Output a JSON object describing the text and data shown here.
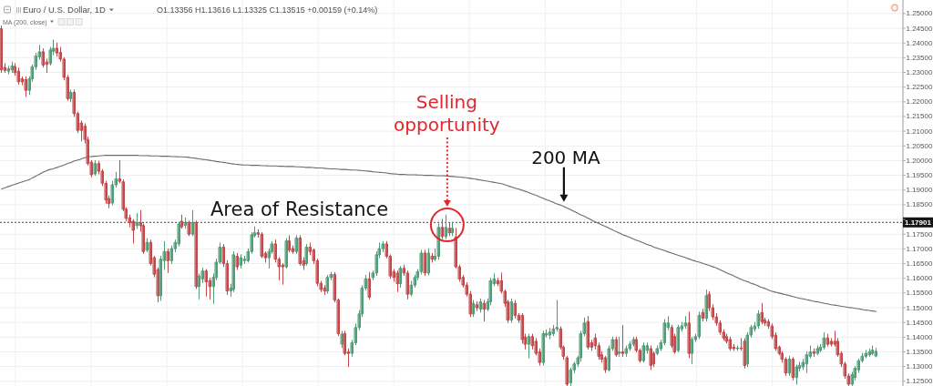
{
  "chart_data": {
    "type": "candlestick",
    "title": "Euro / U.S. Dollar, 1D",
    "subtitle": "O1.13356 H1.13616 L1.13325 C1.13515 +0.00159 (+0.14%)",
    "categories": [
      null,
      null,
      null,
      null,
      null,
      null,
      null,
      null,
      null,
      null,
      null,
      null,
      null,
      null,
      null,
      null,
      null,
      null,
      null,
      null,
      null,
      null,
      null,
      null,
      null,
      null,
      null,
      null,
      null,
      null,
      null,
      null,
      null,
      null,
      null,
      null,
      null,
      null,
      null,
      null,
      null,
      null,
      null,
      null,
      null,
      null,
      null,
      null,
      null,
      null,
      null,
      null,
      null,
      null,
      null,
      null,
      null,
      null,
      null,
      null,
      null,
      null,
      null,
      null,
      null,
      null,
      null,
      null,
      null,
      null,
      null,
      null,
      null,
      null,
      null,
      null,
      null,
      null,
      null,
      null,
      null,
      null,
      null,
      null,
      null,
      null,
      null,
      null,
      null,
      null,
      null,
      null,
      null,
      null,
      null,
      null,
      null,
      null,
      null,
      null,
      null,
      null,
      null,
      null,
      null,
      null,
      null,
      null,
      null,
      null,
      null,
      null,
      null,
      null,
      null,
      null,
      null,
      null,
      null,
      null,
      null,
      null,
      null,
      null,
      null,
      null,
      null,
      null,
      null,
      null,
      null,
      null,
      null,
      null,
      null,
      null,
      null,
      null,
      null,
      null,
      null,
      null,
      null,
      null,
      null,
      null,
      null,
      null,
      null,
      null,
      null,
      null,
      null,
      null,
      null,
      null,
      null,
      null,
      null,
      null,
      null,
      null,
      null,
      null,
      null,
      null,
      null,
      null,
      null,
      null,
      null,
      null,
      null,
      null,
      null,
      null,
      null,
      null,
      null,
      null,
      null,
      null,
      null,
      null,
      null,
      null,
      null,
      null,
      null,
      null,
      null,
      null,
      null,
      null,
      null,
      null,
      null,
      null,
      null,
      null,
      null,
      null,
      null,
      null,
      null,
      null,
      null,
      null,
      null,
      null,
      null,
      null,
      null,
      null,
      null,
      null,
      null,
      null,
      null,
      null,
      null,
      null,
      null,
      null,
      null,
      null,
      null,
      null,
      null,
      null,
      null,
      null,
      null,
      null,
      null,
      null,
      null,
      null,
      null,
      null,
      null,
      null,
      null,
      null,
      null,
      null,
      null,
      null,
      null,
      null,
      null,
      null,
      null
    ],
    "ohlc": [
      [
        1.2448,
        1.2458,
        1.23,
        1.2309
      ],
      [
        1.2317,
        1.233,
        1.23,
        1.2307
      ],
      [
        1.2304,
        1.232,
        1.2295,
        1.2312
      ],
      [
        1.2309,
        1.2335,
        1.23,
        1.2322
      ],
      [
        1.232,
        1.233,
        1.229,
        1.2299
      ],
      [
        1.2304,
        1.2315,
        1.226,
        1.2268
      ],
      [
        1.2278,
        1.2285,
        1.2258,
        1.2268
      ],
      [
        1.2276,
        1.2285,
        1.2218,
        1.2239
      ],
      [
        1.2239,
        1.2285,
        1.2225,
        1.2278
      ],
      [
        1.2278,
        1.2325,
        1.227,
        1.2319
      ],
      [
        1.2319,
        1.2365,
        1.231,
        1.2356
      ],
      [
        1.2353,
        1.2392,
        1.2345,
        1.237
      ],
      [
        1.237,
        1.238,
        1.2318,
        1.2325
      ],
      [
        1.2335,
        1.2345,
        1.23,
        1.2327
      ],
      [
        1.233,
        1.2385,
        1.2325,
        1.2376
      ],
      [
        1.2372,
        1.241,
        1.236,
        1.2382
      ],
      [
        1.2382,
        1.24,
        1.2355,
        1.2366
      ],
      [
        1.2368,
        1.2385,
        1.2338,
        1.2345
      ],
      [
        1.2345,
        1.235,
        1.2275,
        1.2283
      ],
      [
        1.2283,
        1.229,
        1.2205,
        1.2211
      ],
      [
        1.2211,
        1.224,
        1.22,
        1.2232
      ],
      [
        1.2232,
        1.224,
        1.215,
        1.216
      ],
      [
        1.216,
        1.2165,
        1.2095,
        1.2103
      ],
      [
        1.2128,
        1.2135,
        1.2067,
        1.2103
      ],
      [
        1.2117,
        1.2125,
        1.206,
        1.2072
      ],
      [
        1.2072,
        1.208,
        1.1985,
        1.199
      ],
      [
        1.1995,
        1.2,
        1.1945,
        1.1952
      ],
      [
        1.1955,
        1.2,
        1.195,
        1.199
      ],
      [
        1.199,
        1.1998,
        1.1955,
        1.1964
      ],
      [
        1.1964,
        1.197,
        1.1915,
        1.1923
      ],
      [
        1.1923,
        1.193,
        1.1855,
        1.1866
      ],
      [
        1.1871,
        1.188,
        1.184,
        1.1854
      ],
      [
        1.1856,
        1.193,
        1.185,
        1.1918
      ],
      [
        1.1918,
        1.196,
        1.191,
        1.1938
      ],
      [
        1.1938,
        1.2,
        1.1925,
        1.193
      ],
      [
        1.1928,
        1.1935,
        1.183,
        1.1835
      ],
      [
        1.1835,
        1.184,
        1.1795,
        1.1804
      ],
      [
        1.1806,
        1.1815,
        1.1775,
        1.1789
      ],
      [
        1.1794,
        1.18,
        1.172,
        1.1763
      ],
      [
        1.1779,
        1.182,
        1.177,
        1.1789
      ],
      [
        1.1789,
        1.183,
        1.176,
        1.1779
      ],
      [
        1.1779,
        1.1785,
        1.1685,
        1.1691
      ],
      [
        1.1696,
        1.1735,
        1.169,
        1.1722
      ],
      [
        1.1722,
        1.173,
        1.1645,
        1.165
      ],
      [
        1.167,
        1.1675,
        1.1605,
        1.1614
      ],
      [
        1.1629,
        1.1635,
        1.152,
        1.1541
      ],
      [
        1.1541,
        1.1675,
        1.1525,
        1.1665
      ],
      [
        1.166,
        1.1725,
        1.163,
        1.1691
      ],
      [
        1.1691,
        1.17,
        1.162,
        1.166
      ],
      [
        1.166,
        1.171,
        1.165,
        1.1701
      ],
      [
        1.1701,
        1.173,
        1.169,
        1.1722
      ],
      [
        1.1717,
        1.179,
        1.171,
        1.1784
      ],
      [
        1.1794,
        1.1815,
        1.177,
        1.1775
      ],
      [
        1.178,
        1.1805,
        1.177,
        1.179
      ],
      [
        1.1789,
        1.1795,
        1.1745,
        1.175
      ],
      [
        1.175,
        1.183,
        1.1745,
        1.1789
      ],
      [
        1.1789,
        1.1795,
        1.1565,
        1.1572
      ],
      [
        1.1572,
        1.1615,
        1.153,
        1.1608
      ],
      [
        1.1598,
        1.1635,
        1.1585,
        1.1625
      ],
      [
        1.1625,
        1.163,
        1.154,
        1.1588
      ],
      [
        1.1592,
        1.16,
        1.153,
        1.1572
      ],
      [
        1.1572,
        1.1615,
        1.1515,
        1.1603
      ],
      [
        1.1603,
        1.1665,
        1.1595,
        1.1655
      ],
      [
        1.1655,
        1.172,
        1.165,
        1.1706
      ],
      [
        1.1706,
        1.1715,
        1.164,
        1.165
      ],
      [
        1.165,
        1.166,
        1.1545,
        1.1557
      ],
      [
        1.1557,
        1.158,
        1.154,
        1.1567
      ],
      [
        1.1562,
        1.169,
        1.1555,
        1.168
      ],
      [
        1.1675,
        1.1685,
        1.163,
        1.1639
      ],
      [
        1.1645,
        1.168,
        1.1635,
        1.167
      ],
      [
        1.166,
        1.1675,
        1.165,
        1.1665
      ],
      [
        1.166,
        1.17,
        1.1655,
        1.1691
      ],
      [
        1.1691,
        1.1755,
        1.1685,
        1.1748
      ],
      [
        1.1745,
        1.1775,
        1.174,
        1.1755
      ],
      [
        1.1755,
        1.1765,
        1.174,
        1.175
      ],
      [
        1.175,
        1.1755,
        1.167,
        1.1675
      ],
      [
        1.1685,
        1.169,
        1.1655,
        1.167
      ],
      [
        1.167,
        1.17,
        1.1635,
        1.1691
      ],
      [
        1.1691,
        1.1725,
        1.1685,
        1.1717
      ],
      [
        1.1717,
        1.173,
        1.1655,
        1.1665
      ],
      [
        1.1665,
        1.167,
        1.1595,
        1.1639
      ],
      [
        1.1645,
        1.165,
        1.158,
        1.1639
      ],
      [
        1.1639,
        1.1735,
        1.1635,
        1.1727
      ],
      [
        1.1727,
        1.1745,
        1.169,
        1.1696
      ],
      [
        1.1701,
        1.171,
        1.1685,
        1.1691
      ],
      [
        1.1691,
        1.1745,
        1.1685,
        1.1737
      ],
      [
        1.1737,
        1.1745,
        1.1645,
        1.165
      ],
      [
        1.166,
        1.167,
        1.163,
        1.1645
      ],
      [
        1.165,
        1.1715,
        1.1645,
        1.1706
      ],
      [
        1.1706,
        1.172,
        1.168,
        1.1691
      ],
      [
        1.1696,
        1.17,
        1.165,
        1.166
      ],
      [
        1.166,
        1.1665,
        1.1575,
        1.1583
      ],
      [
        1.1583,
        1.159,
        1.1555,
        1.1562
      ],
      [
        1.1567,
        1.1575,
        1.1545,
        1.1557
      ],
      [
        1.1557,
        1.161,
        1.155,
        1.1603
      ],
      [
        1.1603,
        1.162,
        1.1595,
        1.1613
      ],
      [
        1.1613,
        1.162,
        1.152,
        1.1526
      ],
      [
        1.1526,
        1.153,
        1.1405,
        1.1412
      ],
      [
        1.1376,
        1.142,
        1.1365,
        1.141
      ],
      [
        1.1412,
        1.142,
        1.134,
        1.1345
      ],
      [
        1.135,
        1.136,
        1.13,
        1.1345
      ],
      [
        1.1345,
        1.139,
        1.1335,
        1.1381
      ],
      [
        1.1381,
        1.1445,
        1.1375,
        1.1433
      ],
      [
        1.1433,
        1.149,
        1.1425,
        1.1479
      ],
      [
        1.1479,
        1.1575,
        1.147,
        1.1567
      ],
      [
        1.1567,
        1.161,
        1.156,
        1.1598
      ],
      [
        1.1598,
        1.162,
        1.153,
        1.1536
      ],
      [
        1.1603,
        1.1625,
        1.1595,
        1.1618
      ],
      [
        1.1618,
        1.169,
        1.161,
        1.168
      ],
      [
        1.168,
        1.172,
        1.167,
        1.1701
      ],
      [
        1.1701,
        1.1725,
        1.169,
        1.1717
      ],
      [
        1.1717,
        1.1725,
        1.167,
        1.1675
      ],
      [
        1.1675,
        1.168,
        1.16,
        1.1608
      ],
      [
        1.1623,
        1.163,
        1.159,
        1.1603
      ],
      [
        1.1618,
        1.1625,
        1.1555,
        1.1582
      ],
      [
        1.1582,
        1.164,
        1.157,
        1.1634
      ],
      [
        1.1634,
        1.1645,
        1.161,
        1.1618
      ],
      [
        1.1618,
        1.1625,
        1.153,
        1.1546
      ],
      [
        1.1546,
        1.159,
        1.154,
        1.1577
      ],
      [
        1.1577,
        1.161,
        1.157,
        1.1603
      ],
      [
        1.1603,
        1.163,
        1.1595,
        1.1623
      ],
      [
        1.1623,
        1.1695,
        1.1615,
        1.1686
      ],
      [
        1.1686,
        1.1695,
        1.161,
        1.1618
      ],
      [
        1.1618,
        1.17,
        1.1612,
        1.1686
      ],
      [
        1.1675,
        1.1685,
        1.1655,
        1.1665
      ],
      [
        1.1665,
        1.17,
        1.166,
        1.1675
      ],
      [
        1.1675,
        1.1785,
        1.1665,
        1.1773
      ],
      [
        1.1773,
        1.18,
        1.1735,
        1.1742
      ],
      [
        1.1742,
        1.1815,
        1.1735,
        1.1773
      ],
      [
        1.177,
        1.179,
        1.1745,
        1.1755
      ],
      [
        1.1755,
        1.179,
        1.1745,
        1.177
      ],
      [
        1.174,
        1.177,
        1.1635,
        1.1639
      ],
      [
        1.1639,
        1.1645,
        1.159,
        1.1598
      ],
      [
        1.1603,
        1.161,
        1.157,
        1.1577
      ],
      [
        1.1577,
        1.1585,
        1.154,
        1.1546
      ],
      [
        1.1546,
        1.1555,
        1.147,
        1.1479
      ],
      [
        1.1479,
        1.1525,
        1.147,
        1.1515
      ],
      [
        1.151,
        1.152,
        1.149,
        1.15
      ],
      [
        1.1495,
        1.153,
        1.1485,
        1.152
      ],
      [
        1.1515,
        1.1525,
        1.1455,
        1.1495
      ],
      [
        1.1495,
        1.153,
        1.149,
        1.152
      ],
      [
        1.152,
        1.16,
        1.151,
        1.1592
      ],
      [
        1.1582,
        1.1615,
        1.1575,
        1.1598
      ],
      [
        1.1592,
        1.16,
        1.1575,
        1.1582
      ],
      [
        1.1592,
        1.1618,
        1.155,
        1.1556
      ],
      [
        1.1556,
        1.156,
        1.1505,
        1.1515
      ],
      [
        1.152,
        1.1525,
        1.145,
        1.1458
      ],
      [
        1.1458,
        1.153,
        1.145,
        1.152
      ],
      [
        1.1515,
        1.1525,
        1.1465,
        1.1474
      ],
      [
        1.1474,
        1.148,
        1.145,
        1.1458
      ],
      [
        1.1474,
        1.148,
        1.138,
        1.1392
      ],
      [
        1.14,
        1.141,
        1.136,
        1.1376
      ],
      [
        1.1376,
        1.141,
        1.133,
        1.1402
      ],
      [
        1.1402,
        1.141,
        1.136,
        1.1371
      ],
      [
        1.1386,
        1.1395,
        1.134,
        1.1345
      ],
      [
        1.135,
        1.136,
        1.1305,
        1.1314
      ],
      [
        1.1314,
        1.142,
        1.1305,
        1.1412
      ],
      [
        1.1407,
        1.1425,
        1.14,
        1.1412
      ],
      [
        1.1407,
        1.143,
        1.1395,
        1.1417
      ],
      [
        1.1412,
        1.144,
        1.1405,
        1.1428
      ],
      [
        1.1428,
        1.1525,
        1.142,
        1.1433
      ],
      [
        1.1428,
        1.1435,
        1.136,
        1.1366
      ],
      [
        1.1366,
        1.137,
        1.1325,
        1.1335
      ],
      [
        1.133,
        1.1335,
        1.1235,
        1.124
      ],
      [
        1.1245,
        1.1295,
        1.1236,
        1.1289
      ],
      [
        1.1289,
        1.1315,
        1.128,
        1.1309
      ],
      [
        1.1309,
        1.1335,
        1.13,
        1.133
      ],
      [
        1.133,
        1.142,
        1.1318,
        1.1412
      ],
      [
        1.1412,
        1.1465,
        1.1405,
        1.1448
      ],
      [
        1.1453,
        1.147,
        1.136,
        1.1366
      ],
      [
        1.1381,
        1.139,
        1.1355,
        1.1366
      ],
      [
        1.1397,
        1.141,
        1.136,
        1.1371
      ],
      [
        1.1371,
        1.138,
        1.1325,
        1.1335
      ],
      [
        1.134,
        1.135,
        1.1315,
        1.1325
      ],
      [
        1.133,
        1.1335,
        1.128,
        1.1289
      ],
      [
        1.1289,
        1.137,
        1.1285,
        1.1361
      ],
      [
        1.1361,
        1.14,
        1.1355,
        1.1392
      ],
      [
        1.1392,
        1.14,
        1.1335,
        1.134
      ],
      [
        1.1345,
        1.14,
        1.1335,
        1.135
      ],
      [
        1.135,
        1.144,
        1.1335,
        1.1345
      ],
      [
        1.1345,
        1.137,
        1.1335,
        1.1361
      ],
      [
        1.1361,
        1.1385,
        1.1355,
        1.1376
      ],
      [
        1.1376,
        1.14,
        1.137,
        1.1392
      ],
      [
        1.1392,
        1.14,
        1.135,
        1.1355
      ],
      [
        1.1355,
        1.136,
        1.1315,
        1.132
      ],
      [
        1.132,
        1.138,
        1.1315,
        1.1371
      ],
      [
        1.1355,
        1.138,
        1.1345,
        1.1371
      ],
      [
        1.1361,
        1.137,
        1.129,
        1.1304
      ],
      [
        1.1345,
        1.135,
        1.13,
        1.1309
      ],
      [
        1.1345,
        1.137,
        1.134,
        1.1361
      ],
      [
        1.1361,
        1.139,
        1.1355,
        1.1381
      ],
      [
        1.1381,
        1.146,
        1.1375,
        1.1448
      ],
      [
        1.1433,
        1.147,
        1.1425,
        1.1448
      ],
      [
        1.1433,
        1.144,
        1.1365,
        1.1371
      ],
      [
        1.1402,
        1.141,
        1.1345,
        1.135
      ],
      [
        1.1355,
        1.144,
        1.135,
        1.1433
      ],
      [
        1.1428,
        1.145,
        1.142,
        1.1438
      ],
      [
        1.1438,
        1.147,
        1.143,
        1.1448
      ],
      [
        1.1448,
        1.1485,
        1.133,
        1.1345
      ],
      [
        1.1345,
        1.14,
        1.131,
        1.1392
      ],
      [
        1.1392,
        1.141,
        1.1385,
        1.1402
      ],
      [
        1.1402,
        1.1485,
        1.1395,
        1.1474
      ],
      [
        1.1484,
        1.1495,
        1.1455,
        1.1464
      ],
      [
        1.1464,
        1.156,
        1.1455,
        1.1541
      ],
      [
        1.1546,
        1.1555,
        1.149,
        1.15
      ],
      [
        1.15,
        1.151,
        1.146,
        1.1469
      ],
      [
        1.1469,
        1.148,
        1.144,
        1.1448
      ],
      [
        1.1448,
        1.1455,
        1.141,
        1.1417
      ],
      [
        1.1417,
        1.1425,
        1.139,
        1.1397
      ],
      [
        1.1402,
        1.141,
        1.138,
        1.1386
      ],
      [
        1.1392,
        1.14,
        1.1355,
        1.1361
      ],
      [
        1.1366,
        1.1375,
        1.1355,
        1.1361
      ],
      [
        1.1361,
        1.137,
        1.1355,
        1.1363
      ],
      [
        1.1363,
        1.1395,
        1.1355,
        1.1361
      ],
      [
        1.1386,
        1.1395,
        1.1295,
        1.1304
      ],
      [
        1.1309,
        1.1415,
        1.13,
        1.1407
      ],
      [
        1.1407,
        1.144,
        1.14,
        1.1433
      ],
      [
        1.1428,
        1.145,
        1.142,
        1.1438
      ],
      [
        1.1438,
        1.149,
        1.143,
        1.1479
      ],
      [
        1.1484,
        1.1515,
        1.1445,
        1.1453
      ],
      [
        1.1458,
        1.1465,
        1.144,
        1.1448
      ],
      [
        1.1453,
        1.146,
        1.143,
        1.1438
      ],
      [
        1.1438,
        1.1445,
        1.1395,
        1.1402
      ],
      [
        1.1407,
        1.1415,
        1.1355,
        1.1361
      ],
      [
        1.1366,
        1.137,
        1.134,
        1.1345
      ],
      [
        1.1345,
        1.135,
        1.1315,
        1.1325
      ],
      [
        1.1325,
        1.133,
        1.127,
        1.1278
      ],
      [
        1.1278,
        1.1335,
        1.127,
        1.1325
      ],
      [
        1.1325,
        1.133,
        1.1255,
        1.1263
      ],
      [
        1.1263,
        1.1305,
        1.124,
        1.1299
      ],
      [
        1.1294,
        1.1315,
        1.1285,
        1.1304
      ],
      [
        1.1299,
        1.1325,
        1.129,
        1.1314
      ],
      [
        1.1309,
        1.135,
        1.128,
        1.134
      ],
      [
        1.1335,
        1.137,
        1.133,
        1.135
      ],
      [
        1.135,
        1.136,
        1.1335,
        1.1345
      ],
      [
        1.1345,
        1.137,
        1.134,
        1.1361
      ],
      [
        1.1355,
        1.1375,
        1.135,
        1.1366
      ],
      [
        1.1366,
        1.1415,
        1.136,
        1.1397
      ],
      [
        1.1397,
        1.141,
        1.137,
        1.1376
      ],
      [
        1.1386,
        1.1395,
        1.137,
        1.1376
      ],
      [
        1.1386,
        1.142,
        1.137,
        1.1376
      ],
      [
        1.1386,
        1.1395,
        1.1335,
        1.134
      ],
      [
        1.1345,
        1.135,
        1.13,
        1.1309
      ],
      [
        1.1309,
        1.1315,
        1.126,
        1.1268
      ],
      [
        1.1268,
        1.1275,
        1.1236,
        1.124
      ],
      [
        1.124,
        1.128,
        1.1236,
        1.1273
      ],
      [
        1.1263,
        1.13,
        1.1255,
        1.1294
      ],
      [
        1.1289,
        1.1325,
        1.128,
        1.132
      ],
      [
        1.132,
        1.1345,
        1.1315,
        1.1335
      ],
      [
        1.1335,
        1.1355,
        1.133,
        1.1345
      ],
      [
        1.134,
        1.136,
        1.1335,
        1.135
      ],
      [
        1.1345,
        1.137,
        1.134,
        1.1356
      ],
      [
        1.1336,
        1.1362,
        1.1333,
        1.1352
      ]
    ],
    "colors": [
      "#c4474a",
      "#c4474a",
      "#4f9c76",
      "#4f9c76",
      "#c4474a",
      "#c4474a",
      "#c4474a",
      "#c4474a",
      "#4f9c76",
      "#4f9c76",
      "#4f9c76",
      "#4f9c76",
      "#c4474a",
      "#c4474a",
      "#4f9c76",
      "#4f9c76",
      "#c4474a",
      "#c4474a",
      "#c4474a",
      "#c4474a",
      "#4f9c76",
      "#c4474a",
      "#c4474a",
      "#c4474a",
      "#c4474a",
      "#c4474a",
      "#c4474a",
      "#4f9c76",
      "#c4474a",
      "#c4474a",
      "#c4474a",
      "#c4474a",
      "#4f9c76",
      "#4f9c76",
      "#c4474a",
      "#c4474a",
      "#c4474a",
      "#c4474a",
      "#c4474a",
      "#4f9c76",
      "#c4474a",
      "#c4474a",
      "#4f9c76",
      "#c4474a",
      "#c4474a",
      "#c4474a",
      "#4f9c76",
      "#4f9c76",
      "#c4474a",
      "#4f9c76",
      "#4f9c76",
      "#4f9c76",
      "#c4474a",
      "#4f9c76",
      "#c4474a",
      "#4f9c76",
      "#c4474a",
      "#4f9c76",
      "#4f9c76",
      "#c4474a",
      "#c4474a",
      "#4f9c76",
      "#4f9c76",
      "#4f9c76",
      "#c4474a",
      "#c4474a",
      "#4f9c76",
      "#4f9c76",
      "#c4474a",
      "#4f9c76",
      "#4f9c76",
      "#4f9c76",
      "#4f9c76",
      "#4f9c76",
      "#c4474a",
      "#c4474a",
      "#c4474a",
      "#4f9c76",
      "#4f9c76",
      "#c4474a",
      "#c4474a",
      "#c4474a",
      "#4f9c76",
      "#c4474a",
      "#c4474a",
      "#4f9c76",
      "#c4474a",
      "#c4474a",
      "#4f9c76",
      "#c4474a",
      "#c4474a",
      "#c4474a",
      "#c4474a",
      "#c4474a",
      "#4f9c76",
      "#4f9c76",
      "#c4474a",
      "#c4474a",
      "#4f9c76",
      "#c4474a",
      "#c4474a",
      "#4f9c76",
      "#4f9c76",
      "#4f9c76",
      "#4f9c76",
      "#4f9c76",
      "#c4474a",
      "#4f9c76",
      "#4f9c76",
      "#4f9c76",
      "#4f9c76",
      "#c4474a",
      "#c4474a",
      "#c4474a",
      "#c4474a",
      "#4f9c76",
      "#c4474a",
      "#c4474a",
      "#4f9c76",
      "#4f9c76",
      "#4f9c76",
      "#4f9c76",
      "#c4474a",
      "#4f9c76",
      "#c4474a",
      "#4f9c76",
      "#4f9c76",
      "#c4474a",
      "#4f9c76",
      "#c4474a",
      "#4f9c76",
      "#c4474a",
      "#c4474a",
      "#c4474a",
      "#c4474a",
      "#c4474a",
      "#4f9c76",
      "#c4474a",
      "#4f9c76",
      "#c4474a",
      "#4f9c76",
      "#4f9c76",
      "#4f9c76",
      "#c4474a",
      "#c4474a",
      "#c4474a",
      "#c4474a",
      "#4f9c76",
      "#c4474a",
      "#c4474a",
      "#c4474a",
      "#c4474a",
      "#4f9c76",
      "#c4474a",
      "#c4474a",
      "#c4474a",
      "#4f9c76",
      "#4f9c76",
      "#4f9c76",
      "#4f9c76",
      "#4f9c76",
      "#c4474a",
      "#c4474a",
      "#c4474a",
      "#4f9c76",
      "#4f9c76",
      "#4f9c76",
      "#4f9c76",
      "#4f9c76",
      "#c4474a",
      "#c4474a",
      "#c4474a",
      "#c4474a",
      "#c4474a",
      "#c4474a",
      "#4f9c76",
      "#4f9c76",
      "#c4474a",
      "#4f9c76",
      "#c4474a",
      "#4f9c76",
      "#4f9c76",
      "#4f9c76",
      "#c4474a",
      "#c4474a",
      "#4f9c76",
      "#4f9c76",
      "#c4474a",
      "#c4474a",
      "#4f9c76",
      "#4f9c76",
      "#4f9c76",
      "#4f9c76",
      "#c4474a",
      "#c4474a",
      "#4f9c76",
      "#4f9c76",
      "#4f9c76",
      "#c4474a",
      "#4f9c76",
      "#4f9c76",
      "#4f9c76",
      "#c4474a",
      "#4f9c76",
      "#c4474a",
      "#c4474a",
      "#c4474a",
      "#c4474a",
      "#c4474a",
      "#c4474a",
      "#c4474a",
      "#c4474a",
      "#4f9c76",
      "#c4474a",
      "#c4474a",
      "#4f9c76",
      "#4f9c76",
      "#4f9c76",
      "#4f9c76",
      "#c4474a",
      "#c4474a",
      "#c4474a",
      "#c4474a",
      "#c4474a",
      "#c4474a",
      "#c4474a",
      "#c4474a",
      "#4f9c76",
      "#c4474a",
      "#4f9c76",
      "#4f9c76",
      "#4f9c76",
      "#4f9c76",
      "#4f9c76",
      "#c4474a",
      "#4f9c76",
      "#4f9c76",
      "#4f9c76",
      "#c4474a",
      "#c4474a",
      "#c4474a",
      "#c4474a",
      "#c4474a",
      "#c4474a",
      "#c4474a",
      "#4f9c76",
      "#4f9c76",
      "#4f9c76",
      "#4f9c76",
      "#4f9c76",
      "#4f9c76",
      "#4f9c76",
      "#4f9c76"
    ],
    "series": [
      {
        "name": "MA (200, close)",
        "type": "line",
        "color": "#6b6b6b",
        "values": [
          1.1904,
          1.1908,
          1.1912,
          1.1916,
          1.192,
          1.1924,
          1.1928,
          1.1932,
          1.1936,
          1.1942,
          1.1948,
          1.1954,
          1.1961,
          1.1966,
          1.197,
          1.1973,
          1.1977,
          1.1981,
          1.1985,
          1.199,
          1.1994,
          1.1999,
          1.2002,
          1.2006,
          1.201,
          1.2013,
          1.2014,
          1.2015,
          1.2016,
          1.2017,
          1.2018,
          1.2018,
          1.2018,
          1.2018,
          1.2018,
          1.2018,
          1.2018,
          1.2018,
          1.2018,
          1.2018,
          1.2017,
          1.2017,
          1.2017,
          1.2016,
          1.2016,
          1.2016,
          1.2015,
          1.2015,
          1.2015,
          1.2014,
          1.2014,
          1.2013,
          1.2013,
          1.2012,
          1.2011,
          1.2009,
          1.2008,
          1.2006,
          1.2004,
          1.2003,
          1.2001,
          1.1999,
          1.1997,
          1.1995,
          1.1994,
          1.1992,
          1.199,
          1.1988,
          1.1987,
          1.1986,
          1.1985,
          1.1985,
          1.1984,
          1.1984,
          1.1984,
          1.1983,
          1.1983,
          1.1982,
          1.1982,
          1.1982,
          1.1981,
          1.1981,
          1.198,
          1.198,
          1.198,
          1.1979,
          1.1979,
          1.1978,
          1.1977,
          1.1977,
          1.1976,
          1.1975,
          1.1975,
          1.1974,
          1.1973,
          1.1972,
          1.1972,
          1.1971,
          1.197,
          1.197,
          1.1969,
          1.1968,
          1.1968,
          1.1967,
          1.1966,
          1.1965,
          1.1964,
          1.1962,
          1.1961,
          1.196,
          1.1959,
          1.1958,
          1.1956,
          1.1955,
          1.1954,
          1.1953,
          1.1953,
          1.1952,
          1.1952,
          1.1952,
          1.1951,
          1.1951,
          1.195,
          1.195,
          1.195,
          1.1949,
          1.1949,
          1.1949,
          1.1948,
          1.1947,
          1.1946,
          1.1945,
          1.1944,
          1.1943,
          1.1942,
          1.194,
          1.1938,
          1.1936,
          1.1934,
          1.1932,
          1.193,
          1.1928,
          1.1926,
          1.1924,
          1.1922,
          1.1918,
          1.1914,
          1.191,
          1.1906,
          1.1903,
          1.1899,
          1.1895,
          1.1891,
          1.1886,
          1.1882,
          1.1877,
          1.1872,
          1.1867,
          1.1863,
          1.1858,
          1.1853,
          1.1849,
          1.1844,
          1.1838,
          1.1833,
          1.1827,
          1.1821,
          1.1815,
          1.181,
          1.1804,
          1.1798,
          1.1792,
          1.1787,
          1.1781,
          1.1776,
          1.177,
          1.1765,
          1.1759,
          1.1754,
          1.1748,
          1.1744,
          1.1739,
          1.1734,
          1.1729,
          1.1725,
          1.172,
          1.1715,
          1.1711,
          1.1706,
          1.1702,
          1.1698,
          1.1694,
          1.169,
          1.1686,
          1.1682,
          1.1678,
          1.1674,
          1.167,
          1.1666,
          1.1662,
          1.1658,
          1.1655,
          1.1651,
          1.1647,
          1.1643,
          1.1639,
          1.1635,
          1.1629,
          1.1624,
          1.1618,
          1.1613,
          1.1608,
          1.1602,
          1.1597,
          1.1592,
          1.1588,
          1.1583,
          1.1579,
          1.1574,
          1.1569,
          1.1565,
          1.156,
          1.1556,
          1.1553,
          1.155,
          1.1547,
          1.1544,
          1.1541,
          1.1538,
          1.1535,
          1.1532,
          1.153,
          1.1527,
          1.1525,
          1.1522,
          1.152,
          1.1518,
          1.1515,
          1.1513,
          1.151,
          1.1509,
          1.1507,
          1.1505,
          1.1503,
          1.1501,
          1.15,
          1.1498,
          1.1496,
          1.1494,
          1.1492,
          1.1491,
          1.1489,
          1.1487
        ]
      }
    ],
    "ylim": [
      1.1234,
      1.2546
    ],
    "yticks": [
      {
        "value": 1.125,
        "label": "1.12500"
      },
      {
        "value": 1.13,
        "label": "1.13000"
      },
      {
        "value": 1.135,
        "label": "1.13500"
      },
      {
        "value": 1.14,
        "label": "1.14000"
      },
      {
        "value": 1.145,
        "label": "1.14500"
      },
      {
        "value": 1.15,
        "label": "1.15000"
      },
      {
        "value": 1.155,
        "label": "1.15500"
      },
      {
        "value": 1.16,
        "label": "1.16000"
      },
      {
        "value": 1.165,
        "label": "1.16500"
      },
      {
        "value": 1.17,
        "label": "1.17000"
      },
      {
        "value": 1.175,
        "label": "1.17500"
      },
      {
        "value": 1.17901,
        "label": "1.17901"
      },
      {
        "value": 1.18,
        "label": null
      },
      {
        "value": 1.185,
        "label": "1.18500"
      },
      {
        "value": 1.19,
        "label": "1.19000"
      },
      {
        "value": 1.195,
        "label": "1.19500"
      },
      {
        "value": 1.2,
        "label": "1.20000"
      },
      {
        "value": 1.205,
        "label": "1.20500"
      },
      {
        "value": 1.21,
        "label": "1.21000"
      },
      {
        "value": 1.215,
        "label": "1.21500"
      },
      {
        "value": 1.22,
        "label": "1.22000"
      },
      {
        "value": 1.225,
        "label": "1.22500"
      },
      {
        "value": 1.23,
        "label": "1.23000"
      },
      {
        "value": 1.235,
        "label": "1.23500"
      },
      {
        "value": 1.24,
        "label": "1.24000"
      },
      {
        "value": 1.245,
        "label": "1.24500"
      },
      {
        "value": 1.25,
        "label": "1.25000"
      }
    ],
    "ref_lines": [
      {
        "axis": "y",
        "value": 1.17901,
        "label": "Area of Resistance",
        "line_style": "dotted",
        "color": "#444444"
      }
    ],
    "annotations": [
      "Selling opportunity",
      {
        "text": "200 MA",
        "y": 1.186
      }
    ],
    "grid": true,
    "legend": "top left",
    "tick_labels": "y"
  }
}
